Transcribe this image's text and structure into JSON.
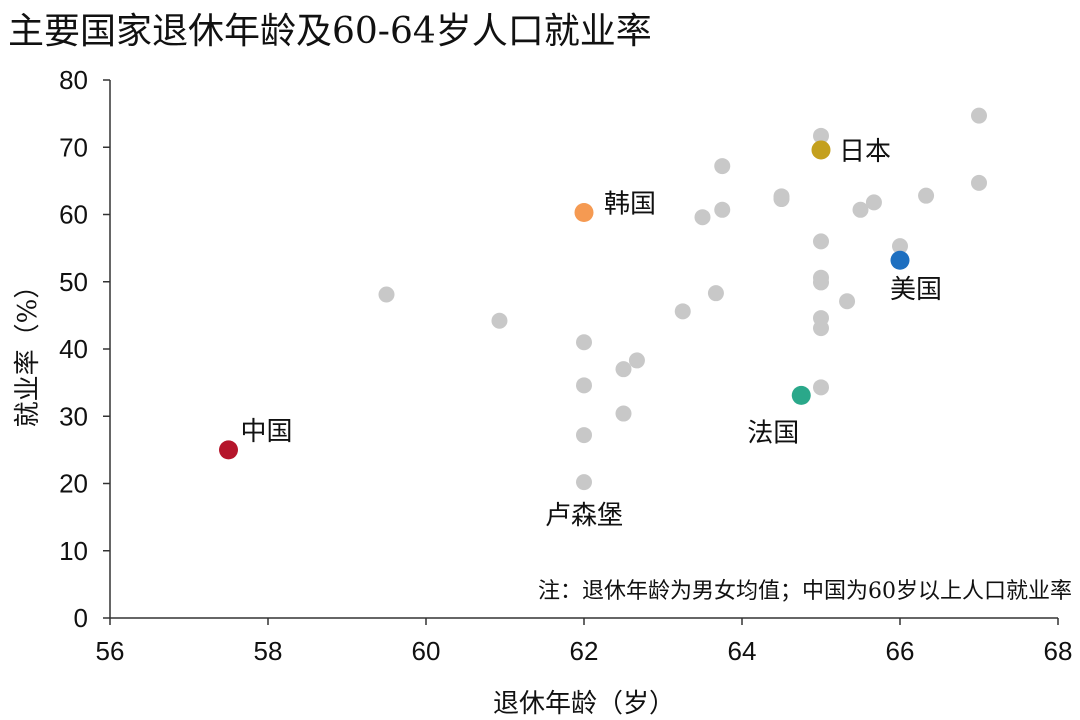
{
  "chart_data": {
    "type": "scatter",
    "title": "主要国家退休年龄及60-64岁人口就业率",
    "xlabel": "退休年龄（岁）",
    "ylabel": "就业率（%）",
    "xlim": [
      56,
      68
    ],
    "ylim": [
      0,
      80
    ],
    "xticks": [
      "56",
      "58",
      "60",
      "62",
      "64",
      "66",
      "68"
    ],
    "yticks": [
      "0",
      "10",
      "20",
      "30",
      "40",
      "50",
      "60",
      "70",
      "80"
    ],
    "grid": false,
    "legend": "none",
    "note": "注：退休年龄为男女均值；中国为60岁以上人口就业率",
    "colors": {
      "other": "#c8c8c8",
      "china": "#b5152b",
      "korea": "#f59a52",
      "japan": "#c4a01e",
      "usa": "#1e6fc0",
      "france": "#2aa88a"
    },
    "points": [
      {
        "x": 59.5,
        "y": 48.1
      },
      {
        "x": 60.93,
        "y": 44.2
      },
      {
        "x": 62.0,
        "y": 41.0
      },
      {
        "x": 62.0,
        "y": 34.6
      },
      {
        "x": 62.0,
        "y": 27.2
      },
      {
        "x": 62.0,
        "y": 20.2,
        "label": "卢森堡"
      },
      {
        "x": 62.5,
        "y": 37.0
      },
      {
        "x": 62.67,
        "y": 38.3
      },
      {
        "x": 62.5,
        "y": 30.4
      },
      {
        "x": 63.25,
        "y": 45.6
      },
      {
        "x": 63.5,
        "y": 59.6
      },
      {
        "x": 63.67,
        "y": 48.3
      },
      {
        "x": 63.75,
        "y": 67.2
      },
      {
        "x": 63.75,
        "y": 60.7
      },
      {
        "x": 64.5,
        "y": 62.7
      },
      {
        "x": 64.5,
        "y": 62.3
      },
      {
        "x": 65.0,
        "y": 71.7
      },
      {
        "x": 65.0,
        "y": 56.0
      },
      {
        "x": 65.0,
        "y": 50.6
      },
      {
        "x": 65.0,
        "y": 49.9
      },
      {
        "x": 65.0,
        "y": 44.6
      },
      {
        "x": 65.0,
        "y": 43.1
      },
      {
        "x": 65.0,
        "y": 34.3
      },
      {
        "x": 65.33,
        "y": 47.1
      },
      {
        "x": 65.5,
        "y": 60.7
      },
      {
        "x": 65.67,
        "y": 61.8
      },
      {
        "x": 66.0,
        "y": 55.3
      },
      {
        "x": 66.33,
        "y": 62.8
      },
      {
        "x": 67.0,
        "y": 74.7
      },
      {
        "x": 67.0,
        "y": 64.7
      }
    ],
    "highlights": [
      {
        "label": "中国",
        "x": 57.5,
        "y": 25.0,
        "color": "#b5152b"
      },
      {
        "label": "韩国",
        "x": 62.0,
        "y": 60.3,
        "color": "#f59a52"
      },
      {
        "label": "日本",
        "x": 65.0,
        "y": 69.6,
        "color": "#c4a01e"
      },
      {
        "label": "美国",
        "x": 66.0,
        "y": 53.2,
        "color": "#1e6fc0"
      },
      {
        "label": "法国",
        "x": 64.75,
        "y": 33.1,
        "color": "#2aa88a"
      }
    ]
  }
}
